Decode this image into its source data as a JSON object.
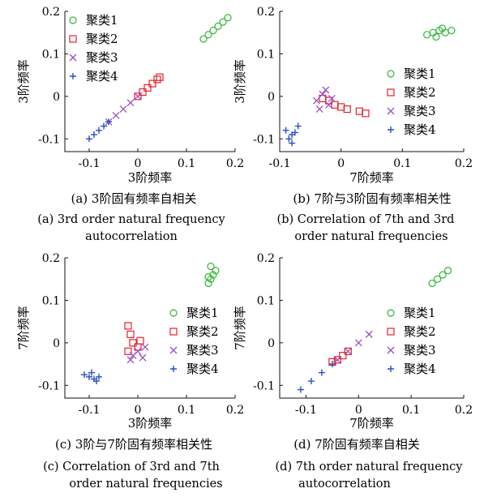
{
  "figure": {
    "panels": [
      {
        "caption_cn": "(a) 3阶固有频率自相关",
        "caption_en_1": "(a) 3rd order natural frequency",
        "caption_en_2": "autocorrelation"
      },
      {
        "caption_cn": "(b) 7阶与3阶固有频率相关性",
        "caption_en_1": "(b) Correlation of 7th and 3rd",
        "caption_en_2": "order natural frequencies"
      },
      {
        "caption_cn": "(c) 3阶与7阶固有频率相关性",
        "caption_en_1": "(c) Correlation of 3rd and 7th",
        "caption_en_2": "order natural frequencies"
      },
      {
        "caption_cn": "(d) 7阶固有频率自相关",
        "caption_en_1": "(d) 7th order natural frequency",
        "caption_en_2": "autocorrelation"
      }
    ]
  },
  "chart_data": [
    {
      "type": "scatter",
      "xlabel": "3阶频率",
      "ylabel": "3阶频率",
      "xlim": [
        -0.15,
        0.2
      ],
      "ylim": [
        -0.13,
        0.2
      ],
      "xticks": [
        "-0.1",
        "0",
        "0.1",
        "0.2"
      ],
      "yticks": [
        "-0.1",
        "0",
        "0.1",
        "0.2"
      ],
      "legend_position": "top-left",
      "series": [
        {
          "name": "聚类1",
          "marker": "circle",
          "color": "#33b633",
          "points": [
            [
              0.135,
              0.135
            ],
            [
              0.145,
              0.145
            ],
            [
              0.155,
              0.155
            ],
            [
              0.165,
              0.165
            ],
            [
              0.175,
              0.175
            ],
            [
              0.185,
              0.185
            ]
          ]
        },
        {
          "name": "聚类2",
          "marker": "square",
          "color": "#e8202a",
          "points": [
            [
              0.0,
              0.0
            ],
            [
              0.01,
              0.01
            ],
            [
              0.02,
              0.02
            ],
            [
              0.03,
              0.03
            ],
            [
              0.04,
              0.04
            ],
            [
              0.045,
              0.045
            ]
          ]
        },
        {
          "name": "聚类3",
          "marker": "x",
          "color": "#9b4fc3",
          "points": [
            [
              -0.06,
              -0.06
            ],
            [
              -0.045,
              -0.045
            ],
            [
              -0.03,
              -0.03
            ],
            [
              -0.015,
              -0.015
            ],
            [
              0.0,
              0.0
            ]
          ]
        },
        {
          "name": "聚类4",
          "marker": "plus",
          "color": "#2a4fbf",
          "points": [
            [
              -0.1,
              -0.1
            ],
            [
              -0.09,
              -0.09
            ],
            [
              -0.08,
              -0.08
            ],
            [
              -0.07,
              -0.07
            ],
            [
              -0.06,
              -0.06
            ]
          ]
        }
      ]
    },
    {
      "type": "scatter",
      "xlabel": "7阶频率",
      "ylabel": "3阶频率",
      "xlim": [
        -0.1,
        0.2
      ],
      "ylim": [
        -0.13,
        0.2
      ],
      "xticks": [
        "-0.1",
        "0",
        "0.1",
        "0.2"
      ],
      "yticks": [
        "-0.1",
        "0",
        "0.1",
        "0.2"
      ],
      "legend_position": "center-right",
      "series": [
        {
          "name": "聚类1",
          "marker": "circle",
          "color": "#33b633",
          "points": [
            [
              0.14,
              0.145
            ],
            [
              0.15,
              0.15
            ],
            [
              0.16,
              0.155
            ],
            [
              0.17,
              0.15
            ],
            [
              0.18,
              0.155
            ],
            [
              0.155,
              0.14
            ],
            [
              0.165,
              0.16
            ]
          ]
        },
        {
          "name": "聚类2",
          "marker": "square",
          "color": "#e8202a",
          "points": [
            [
              -0.02,
              -0.01
            ],
            [
              -0.01,
              -0.02
            ],
            [
              0.0,
              -0.025
            ],
            [
              0.01,
              -0.03
            ],
            [
              0.03,
              -0.035
            ],
            [
              0.04,
              -0.04
            ],
            [
              -0.03,
              -0.005
            ]
          ]
        },
        {
          "name": "聚类3",
          "marker": "x",
          "color": "#9b4fc3",
          "points": [
            [
              -0.04,
              -0.01
            ],
            [
              -0.03,
              0.005
            ],
            [
              -0.02,
              -0.02
            ],
            [
              -0.035,
              -0.03
            ],
            [
              -0.025,
              0.015
            ],
            [
              -0.015,
              -0.005
            ]
          ]
        },
        {
          "name": "聚类4",
          "marker": "plus",
          "color": "#2a4fbf",
          "points": [
            [
              -0.09,
              -0.08
            ],
            [
              -0.085,
              -0.1
            ],
            [
              -0.08,
              -0.09
            ],
            [
              -0.075,
              -0.085
            ],
            [
              -0.07,
              -0.07
            ],
            [
              -0.08,
              -0.11
            ]
          ]
        }
      ]
    },
    {
      "type": "scatter",
      "xlabel": "3阶频率",
      "ylabel": "7阶频率",
      "xlim": [
        -0.15,
        0.2
      ],
      "ylim": [
        -0.13,
        0.2
      ],
      "xticks": [
        "-0.1",
        "0",
        "0.1",
        "0.2"
      ],
      "yticks": [
        "-0.1",
        "0",
        "0.1",
        "0.2"
      ],
      "legend_position": "center-right",
      "series": [
        {
          "name": "聚类1",
          "marker": "circle",
          "color": "#33b633",
          "points": [
            [
              0.145,
              0.14
            ],
            [
              0.15,
              0.15
            ],
            [
              0.155,
              0.16
            ],
            [
              0.16,
              0.17
            ],
            [
              0.15,
              0.18
            ],
            [
              0.145,
              0.155
            ]
          ]
        },
        {
          "name": "聚类2",
          "marker": "square",
          "color": "#e8202a",
          "points": [
            [
              -0.02,
              0.04
            ],
            [
              -0.015,
              0.02
            ],
            [
              -0.01,
              0.0
            ],
            [
              0.0,
              -0.01
            ],
            [
              -0.02,
              -0.02
            ],
            [
              0.005,
              0.005
            ]
          ]
        },
        {
          "name": "聚类3",
          "marker": "x",
          "color": "#9b4fc3",
          "points": [
            [
              -0.01,
              -0.03
            ],
            [
              0.0,
              -0.02
            ],
            [
              0.01,
              -0.035
            ],
            [
              -0.015,
              -0.04
            ],
            [
              0.015,
              -0.01
            ]
          ]
        },
        {
          "name": "聚类4",
          "marker": "plus",
          "color": "#2a4fbf",
          "points": [
            [
              -0.11,
              -0.075
            ],
            [
              -0.1,
              -0.08
            ],
            [
              -0.09,
              -0.085
            ],
            [
              -0.095,
              -0.07
            ],
            [
              -0.08,
              -0.08
            ],
            [
              -0.085,
              -0.09
            ]
          ]
        }
      ]
    },
    {
      "type": "scatter",
      "xlabel": "7阶频率",
      "ylabel": "7阶频率",
      "xlim": [
        -0.15,
        0.2
      ],
      "ylim": [
        -0.13,
        0.2
      ],
      "xticks": [
        "-0.1",
        "0",
        "0.1",
        "0.2"
      ],
      "yticks": [
        "-0.1",
        "0",
        "0.1",
        "0.2"
      ],
      "legend_position": "center-right",
      "series": [
        {
          "name": "聚类1",
          "marker": "circle",
          "color": "#33b633",
          "points": [
            [
              0.14,
              0.14
            ],
            [
              0.15,
              0.15
            ],
            [
              0.16,
              0.16
            ],
            [
              0.17,
              0.17
            ]
          ]
        },
        {
          "name": "聚类2",
          "marker": "square",
          "color": "#e8202a",
          "points": [
            [
              -0.05,
              -0.045
            ],
            [
              -0.04,
              -0.04
            ],
            [
              -0.03,
              -0.03
            ],
            [
              -0.02,
              -0.02
            ]
          ]
        },
        {
          "name": "聚类3",
          "marker": "x",
          "color": "#9b4fc3",
          "points": [
            [
              -0.04,
              -0.04
            ],
            [
              -0.02,
              -0.02
            ],
            [
              0.0,
              0.0
            ],
            [
              0.02,
              0.02
            ]
          ]
        },
        {
          "name": "聚类4",
          "marker": "plus",
          "color": "#2a4fbf",
          "points": [
            [
              -0.11,
              -0.11
            ],
            [
              -0.09,
              -0.09
            ],
            [
              -0.07,
              -0.07
            ],
            [
              -0.05,
              -0.05
            ]
          ]
        }
      ]
    }
  ]
}
